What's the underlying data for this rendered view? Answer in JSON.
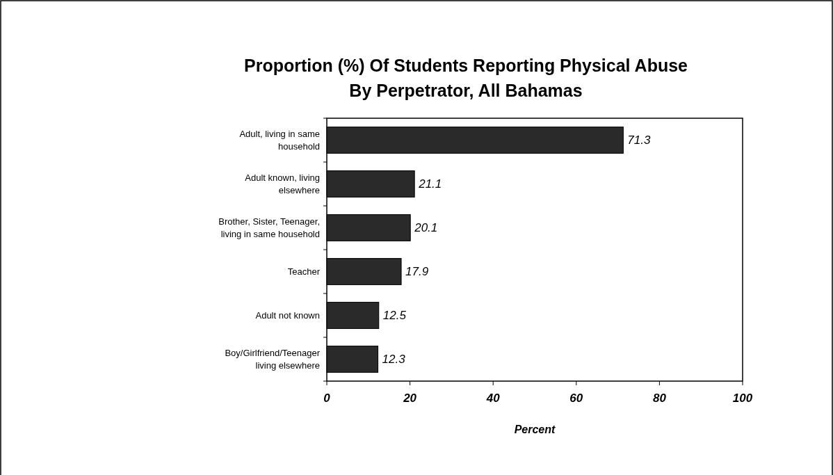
{
  "chart_data": {
    "type": "bar",
    "orientation": "horizontal",
    "title": "Proportion (%) Of Students Reporting Physical Abuse\nBy Perpetrator, All Bahamas",
    "xlabel": "Percent",
    "categories": [
      "Adult, living in same household",
      "Adult known, living elsewhere",
      "Brother, Sister, Teenager, living in same household",
      "Teacher",
      "Adult not known",
      "Boy/Girlfriend/Teenager living elsewhere"
    ],
    "values": [
      71.3,
      21.1,
      20.1,
      17.9,
      12.5,
      12.3
    ],
    "color": "#2a2a2a",
    "xlim": [
      0,
      100
    ],
    "xticks": [
      0,
      20,
      40,
      60,
      80,
      100
    ],
    "data_labels": true,
    "grid": false
  }
}
